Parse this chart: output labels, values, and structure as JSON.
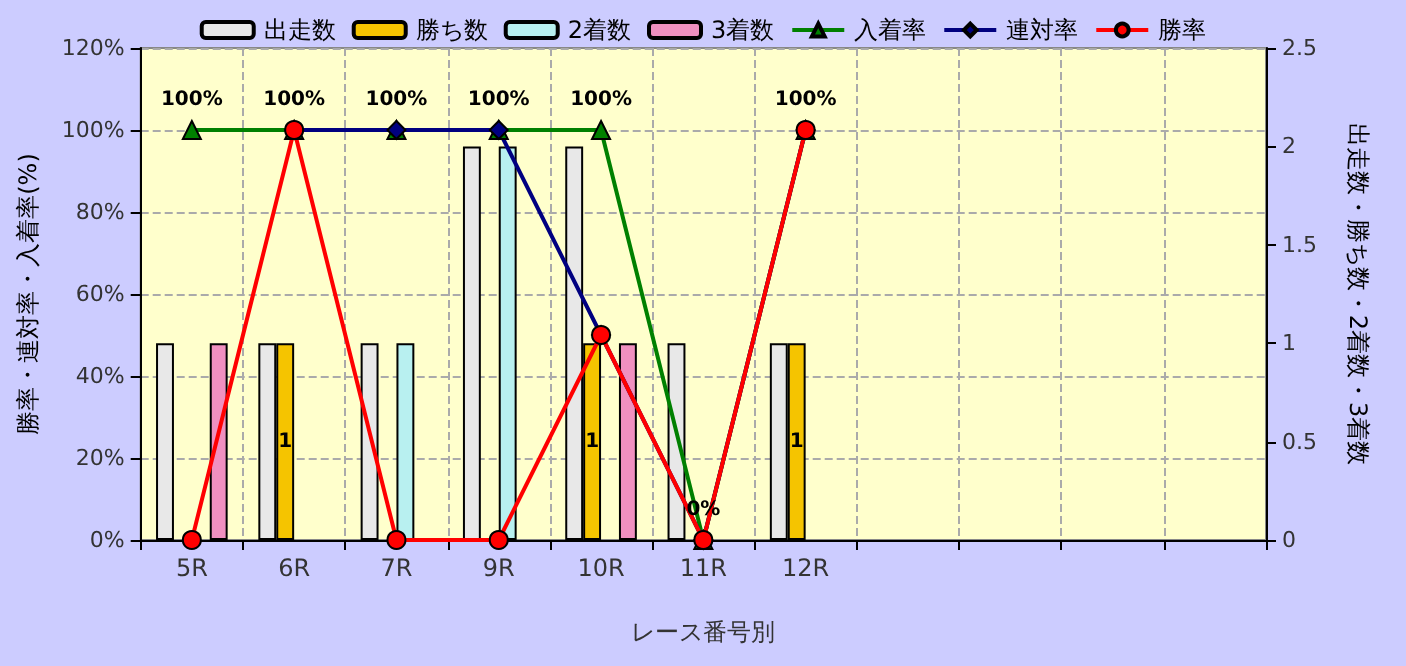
{
  "chart_data": {
    "type": "bar",
    "xlabel": "レース番号別",
    "ylabel": "勝率・連対率・入着率(%)",
    "y2label": "出走数・勝ち数・2着数・3着数",
    "categories": [
      "5R",
      "6R",
      "7R",
      "9R",
      "10R",
      "11R",
      "12R",
      null,
      null,
      null,
      null
    ],
    "series": [
      {
        "name": "出走数",
        "axis": "y2",
        "color": "#e8e8e8",
        "values": [
          1,
          1,
          1,
          2,
          2,
          1,
          1,
          null,
          null,
          null,
          null
        ]
      },
      {
        "name": "勝ち数",
        "axis": "y2",
        "color": "#f5c400",
        "values": [
          0,
          1,
          0,
          0,
          1,
          0,
          1,
          null,
          null,
          null,
          null
        ],
        "value_labels": [
          null,
          "1",
          null,
          null,
          "1",
          null,
          "1",
          null,
          null,
          null,
          null
        ]
      },
      {
        "name": "2着数",
        "axis": "y2",
        "color": "#b8f0f0",
        "values": [
          0,
          0,
          1,
          2,
          0,
          0,
          0,
          null,
          null,
          null,
          null
        ]
      },
      {
        "name": "3着数",
        "axis": "y2",
        "color": "#f090c0",
        "values": [
          1,
          0,
          0,
          0,
          1,
          0,
          0,
          null,
          null,
          null,
          null
        ]
      },
      {
        "name": "入着率",
        "type": "line",
        "color": "#008000",
        "marker": "triangle",
        "values": [
          100,
          100,
          100,
          100,
          100,
          0,
          100,
          null,
          null,
          null,
          null
        ],
        "value_labels": [
          "100%",
          "100%",
          "100%",
          "100%",
          "100%",
          "0%",
          "100%",
          null,
          null,
          null,
          null
        ]
      },
      {
        "name": "連対率",
        "type": "line",
        "color": "#000080",
        "marker": "diamond",
        "values": [
          null,
          100,
          100,
          100,
          50,
          0,
          100,
          null,
          null,
          null,
          null
        ]
      },
      {
        "name": "勝率",
        "type": "line",
        "color": "#ff0000",
        "marker": "circle",
        "values": [
          0,
          100,
          0,
          0,
          50,
          0,
          100,
          null,
          null,
          null,
          null
        ]
      }
    ],
    "ylim": [
      0,
      120
    ],
    "yticks": [
      {
        "value": 0,
        "label": "0%"
      },
      {
        "value": 20,
        "label": "20%"
      },
      {
        "value": 40,
        "label": "40%"
      },
      {
        "value": 60,
        "label": "60%"
      },
      {
        "value": 80,
        "label": "80%"
      },
      {
        "value": 100,
        "label": "100%"
      },
      {
        "value": 120,
        "label": "120%"
      }
    ],
    "y2lim": [
      0,
      2.5
    ],
    "y2ticks": [
      0,
      0.5,
      1,
      1.5,
      2,
      2.5
    ],
    "grid": true,
    "legend": "top"
  }
}
